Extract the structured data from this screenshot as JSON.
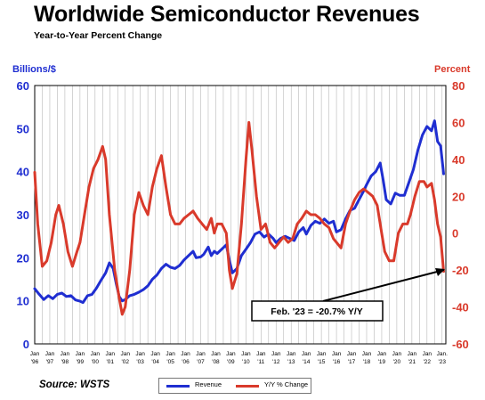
{
  "chart_data": {
    "type": "line",
    "title": "Worldwide Semiconductor Revenues",
    "subtitle": "Year-to-Year Percent Change",
    "ylabel_left": "Billions/$",
    "ylabel_right": "Percent",
    "ylim_left": [
      0,
      60
    ],
    "ylim_right": [
      -60,
      80
    ],
    "yticks_left": [
      0,
      10,
      20,
      30,
      40,
      50,
      60
    ],
    "yticks_right": [
      -60,
      -40,
      -20,
      0,
      20,
      40,
      60,
      80
    ],
    "x_ticks": [
      {
        "top": "Jan",
        "bottom": "'96"
      },
      {
        "top": "Jan",
        "bottom": "'97"
      },
      {
        "top": "Jan",
        "bottom": "'98"
      },
      {
        "top": "Jan",
        "bottom": "'99"
      },
      {
        "top": "Jan",
        "bottom": "'00"
      },
      {
        "top": "Jan",
        "bottom": "'01"
      },
      {
        "top": "Jan",
        "bottom": "'02"
      },
      {
        "top": "Jan",
        "bottom": "'03"
      },
      {
        "top": "Jan",
        "bottom": "'04"
      },
      {
        "top": "Jan",
        "bottom": "'05"
      },
      {
        "top": "Jan",
        "bottom": "'06"
      },
      {
        "top": "Jan",
        "bottom": "'07"
      },
      {
        "top": "Jan",
        "bottom": "'08"
      },
      {
        "top": "Jan",
        "bottom": "'09"
      },
      {
        "top": "Jan",
        "bottom": "'10"
      },
      {
        "top": "Jan",
        "bottom": "'11"
      },
      {
        "top": "Jan",
        "bottom": "'12"
      },
      {
        "top": "Jan",
        "bottom": "'13"
      },
      {
        "top": "Jan",
        "bottom": "'14"
      },
      {
        "top": "Jan",
        "bottom": "'15"
      },
      {
        "top": "Jan",
        "bottom": "'16"
      },
      {
        "top": "Jan",
        "bottom": "'17"
      },
      {
        "top": "Jan",
        "bottom": "'18"
      },
      {
        "top": "Jan",
        "bottom": "'19"
      },
      {
        "top": "Jan",
        "bottom": "'20"
      },
      {
        "top": "Jan",
        "bottom": "'21"
      },
      {
        "top": "Jan",
        "bottom": "'22"
      },
      {
        "top": "Jan.",
        "bottom": "'23"
      }
    ],
    "grid": "vertical",
    "series": [
      {
        "name": "Revenue",
        "axis": "left",
        "color": "#1f2ed1",
        "points": [
          [
            1996.0,
            12.8
          ],
          [
            1996.3,
            11.5
          ],
          [
            1996.6,
            10.3
          ],
          [
            1996.9,
            11.2
          ],
          [
            1997.2,
            10.5
          ],
          [
            1997.5,
            11.5
          ],
          [
            1997.8,
            11.8
          ],
          [
            1998.1,
            11.0
          ],
          [
            1998.4,
            11.2
          ],
          [
            1998.7,
            10.2
          ],
          [
            1999.0,
            9.9
          ],
          [
            1999.2,
            9.6
          ],
          [
            1999.5,
            11.2
          ],
          [
            1999.8,
            11.5
          ],
          [
            2000.1,
            13.0
          ],
          [
            2000.4,
            14.8
          ],
          [
            2000.7,
            16.5
          ],
          [
            2000.95,
            18.8
          ],
          [
            2001.2,
            17.5
          ],
          [
            2001.4,
            14.0
          ],
          [
            2001.6,
            11.0
          ],
          [
            2001.8,
            10.0
          ],
          [
            2002.0,
            10.3
          ],
          [
            2002.3,
            11.2
          ],
          [
            2002.6,
            11.5
          ],
          [
            2002.9,
            12.0
          ],
          [
            2003.2,
            12.6
          ],
          [
            2003.5,
            13.5
          ],
          [
            2003.8,
            15.0
          ],
          [
            2004.1,
            16.0
          ],
          [
            2004.4,
            17.5
          ],
          [
            2004.7,
            18.5
          ],
          [
            2005.0,
            17.8
          ],
          [
            2005.3,
            17.5
          ],
          [
            2005.6,
            18.2
          ],
          [
            2005.9,
            19.5
          ],
          [
            2006.2,
            20.5
          ],
          [
            2006.5,
            21.5
          ],
          [
            2006.7,
            20.0
          ],
          [
            2007.0,
            20.2
          ],
          [
            2007.2,
            20.8
          ],
          [
            2007.5,
            22.5
          ],
          [
            2007.7,
            20.5
          ],
          [
            2007.9,
            21.5
          ],
          [
            2008.1,
            21.0
          ],
          [
            2008.4,
            22.0
          ],
          [
            2008.7,
            23.0
          ],
          [
            2008.9,
            19.5
          ],
          [
            2009.1,
            16.5
          ],
          [
            2009.4,
            17.5
          ],
          [
            2009.7,
            20.5
          ],
          [
            2010.0,
            22.0
          ],
          [
            2010.3,
            23.5
          ],
          [
            2010.6,
            25.5
          ],
          [
            2010.9,
            26.0
          ],
          [
            2011.2,
            24.8
          ],
          [
            2011.5,
            25.5
          ],
          [
            2011.8,
            24.5
          ],
          [
            2012.0,
            23.5
          ],
          [
            2012.3,
            24.5
          ],
          [
            2012.6,
            25.0
          ],
          [
            2012.9,
            24.5
          ],
          [
            2013.2,
            24.0
          ],
          [
            2013.5,
            26.0
          ],
          [
            2013.8,
            27.0
          ],
          [
            2014.0,
            25.5
          ],
          [
            2014.3,
            27.5
          ],
          [
            2014.6,
            28.5
          ],
          [
            2014.9,
            28.0
          ],
          [
            2015.2,
            29.0
          ],
          [
            2015.5,
            28.0
          ],
          [
            2015.8,
            28.5
          ],
          [
            2016.0,
            26.0
          ],
          [
            2016.3,
            26.5
          ],
          [
            2016.6,
            29.0
          ],
          [
            2016.9,
            31.0
          ],
          [
            2017.2,
            31.5
          ],
          [
            2017.5,
            33.5
          ],
          [
            2017.8,
            35.5
          ],
          [
            2018.0,
            37.0
          ],
          [
            2018.3,
            39.0
          ],
          [
            2018.6,
            40.0
          ],
          [
            2018.9,
            42.0
          ],
          [
            2019.1,
            38.0
          ],
          [
            2019.3,
            33.5
          ],
          [
            2019.6,
            32.5
          ],
          [
            2019.9,
            35.0
          ],
          [
            2020.2,
            34.5
          ],
          [
            2020.5,
            34.5
          ],
          [
            2020.8,
            37.5
          ],
          [
            2021.1,
            40.5
          ],
          [
            2021.4,
            45.0
          ],
          [
            2021.7,
            48.5
          ],
          [
            2022.0,
            50.5
          ],
          [
            2022.3,
            49.5
          ],
          [
            2022.5,
            51.8
          ],
          [
            2022.7,
            47.0
          ],
          [
            2022.9,
            46.0
          ],
          [
            2023.1,
            39.5
          ]
        ]
      },
      {
        "name": "Y/Y % Change",
        "axis": "right",
        "color": "#d93a2b",
        "points": [
          [
            1996.0,
            33
          ],
          [
            1996.2,
            5
          ],
          [
            1996.5,
            -18
          ],
          [
            1996.8,
            -15
          ],
          [
            1997.1,
            -5
          ],
          [
            1997.4,
            10
          ],
          [
            1997.6,
            15
          ],
          [
            1997.9,
            5
          ],
          [
            1998.2,
            -10
          ],
          [
            1998.5,
            -18
          ],
          [
            1998.8,
            -10
          ],
          [
            1999.0,
            -5
          ],
          [
            1999.3,
            10
          ],
          [
            1999.6,
            25
          ],
          [
            1999.9,
            35
          ],
          [
            2000.2,
            40
          ],
          [
            2000.5,
            47
          ],
          [
            2000.7,
            40
          ],
          [
            2000.95,
            10
          ],
          [
            2001.3,
            -20
          ],
          [
            2001.6,
            -35
          ],
          [
            2001.8,
            -44
          ],
          [
            2002.0,
            -40
          ],
          [
            2002.3,
            -20
          ],
          [
            2002.6,
            10
          ],
          [
            2002.9,
            22
          ],
          [
            2003.2,
            15
          ],
          [
            2003.5,
            10
          ],
          [
            2003.8,
            25
          ],
          [
            2004.1,
            35
          ],
          [
            2004.4,
            42
          ],
          [
            2004.7,
            25
          ],
          [
            2005.0,
            10
          ],
          [
            2005.3,
            5
          ],
          [
            2005.6,
            5
          ],
          [
            2005.9,
            8
          ],
          [
            2006.2,
            10
          ],
          [
            2006.5,
            12
          ],
          [
            2006.8,
            8
          ],
          [
            2007.1,
            5
          ],
          [
            2007.4,
            2
          ],
          [
            2007.7,
            8
          ],
          [
            2007.9,
            0
          ],
          [
            2008.1,
            5
          ],
          [
            2008.4,
            5
          ],
          [
            2008.7,
            0
          ],
          [
            2008.9,
            -20
          ],
          [
            2009.1,
            -30
          ],
          [
            2009.4,
            -22
          ],
          [
            2009.7,
            5
          ],
          [
            2010.0,
            40
          ],
          [
            2010.2,
            60
          ],
          [
            2010.4,
            45
          ],
          [
            2010.7,
            20
          ],
          [
            2011.0,
            2
          ],
          [
            2011.3,
            5
          ],
          [
            2011.6,
            -5
          ],
          [
            2011.9,
            -8
          ],
          [
            2012.2,
            -5
          ],
          [
            2012.5,
            -2
          ],
          [
            2012.8,
            -5
          ],
          [
            2013.1,
            -3
          ],
          [
            2013.4,
            5
          ],
          [
            2013.7,
            8
          ],
          [
            2014.0,
            12
          ],
          [
            2014.3,
            10
          ],
          [
            2014.6,
            10
          ],
          [
            2014.9,
            8
          ],
          [
            2015.2,
            5
          ],
          [
            2015.5,
            3
          ],
          [
            2015.8,
            -3
          ],
          [
            2016.0,
            -5
          ],
          [
            2016.3,
            -8
          ],
          [
            2016.6,
            5
          ],
          [
            2016.9,
            12
          ],
          [
            2017.2,
            18
          ],
          [
            2017.5,
            22
          ],
          [
            2017.8,
            24
          ],
          [
            2018.1,
            22
          ],
          [
            2018.4,
            20
          ],
          [
            2018.7,
            15
          ],
          [
            2019.0,
            0
          ],
          [
            2019.2,
            -10
          ],
          [
            2019.5,
            -15
          ],
          [
            2019.8,
            -15
          ],
          [
            2020.1,
            0
          ],
          [
            2020.4,
            5
          ],
          [
            2020.7,
            5
          ],
          [
            2020.9,
            10
          ],
          [
            2021.2,
            20
          ],
          [
            2021.5,
            28
          ],
          [
            2021.8,
            28
          ],
          [
            2022.0,
            25
          ],
          [
            2022.3,
            27
          ],
          [
            2022.5,
            18
          ],
          [
            2022.7,
            5
          ],
          [
            2022.9,
            -2
          ],
          [
            2023.1,
            -20.7
          ]
        ]
      }
    ],
    "annotation": "Feb. '23 = -20.7% Y/Y",
    "source": "Source: WSTS",
    "legend_position": "bottom-center"
  }
}
